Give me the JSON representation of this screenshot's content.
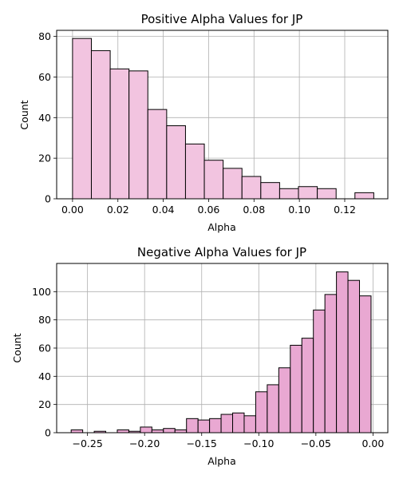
{
  "chart_data": [
    {
      "type": "bar",
      "subtype": "histogram",
      "title": "Positive Alpha Values for JP",
      "xlabel": "Alpha",
      "ylabel": "Count",
      "xlim": [
        -0.007,
        0.139
      ],
      "ylim": [
        0,
        83
      ],
      "xticks": [
        0.0,
        0.02,
        0.04,
        0.06,
        0.08,
        0.1,
        0.12
      ],
      "xtick_labels": [
        "0.00",
        "0.02",
        "0.04",
        "0.06",
        "0.08",
        "0.10",
        "0.12"
      ],
      "yticks": [
        0,
        20,
        40,
        60,
        80
      ],
      "ytick_labels": [
        "0",
        "20",
        "40",
        "60",
        "80"
      ],
      "grid": true,
      "bar_color": "#f2c4e0",
      "edge_color": "#000000",
      "bins": [
        {
          "x0": 0.0,
          "x1": 0.0083,
          "count": 79
        },
        {
          "x0": 0.0083,
          "x1": 0.0166,
          "count": 73
        },
        {
          "x0": 0.0166,
          "x1": 0.0249,
          "count": 64
        },
        {
          "x0": 0.0249,
          "x1": 0.0332,
          "count": 63
        },
        {
          "x0": 0.0332,
          "x1": 0.0415,
          "count": 44
        },
        {
          "x0": 0.0415,
          "x1": 0.0498,
          "count": 36
        },
        {
          "x0": 0.0498,
          "x1": 0.0581,
          "count": 27
        },
        {
          "x0": 0.0581,
          "x1": 0.0664,
          "count": 19
        },
        {
          "x0": 0.0664,
          "x1": 0.0747,
          "count": 15
        },
        {
          "x0": 0.0747,
          "x1": 0.083,
          "count": 11
        },
        {
          "x0": 0.083,
          "x1": 0.0913,
          "count": 8
        },
        {
          "x0": 0.0913,
          "x1": 0.0996,
          "count": 5
        },
        {
          "x0": 0.0996,
          "x1": 0.1079,
          "count": 6
        },
        {
          "x0": 0.1079,
          "x1": 0.1162,
          "count": 5
        },
        {
          "x0": 0.1162,
          "x1": 0.1245,
          "count": 0
        },
        {
          "x0": 0.1245,
          "x1": 0.1328,
          "count": 3
        }
      ]
    },
    {
      "type": "bar",
      "subtype": "histogram",
      "title": "Negative Alpha Values for JP",
      "xlabel": "Alpha",
      "ylabel": "Count",
      "xlim": [
        -0.277,
        0.013
      ],
      "ylim": [
        0,
        120
      ],
      "xticks": [
        -0.25,
        -0.2,
        -0.15,
        -0.1,
        -0.05,
        0.0
      ],
      "xtick_labels": [
        "−0.25",
        "−0.20",
        "−0.15",
        "−0.10",
        "−0.05",
        "0.00"
      ],
      "yticks": [
        0,
        20,
        40,
        60,
        80,
        100
      ],
      "ytick_labels": [
        "0",
        "20",
        "40",
        "60",
        "80",
        "100"
      ],
      "grid": true,
      "bar_color": "#e9a8d2",
      "edge_color": "#000000",
      "bins": [
        {
          "x0": -0.2643,
          "x1": -0.2542,
          "count": 2
        },
        {
          "x0": -0.2542,
          "x1": -0.2441,
          "count": 0
        },
        {
          "x0": -0.2441,
          "x1": -0.234,
          "count": 1
        },
        {
          "x0": -0.234,
          "x1": -0.2239,
          "count": 0
        },
        {
          "x0": -0.2239,
          "x1": -0.2138,
          "count": 2
        },
        {
          "x0": -0.2138,
          "x1": -0.2037,
          "count": 1
        },
        {
          "x0": -0.2037,
          "x1": -0.1936,
          "count": 4
        },
        {
          "x0": -0.1936,
          "x1": -0.1835,
          "count": 2
        },
        {
          "x0": -0.1835,
          "x1": -0.1734,
          "count": 3
        },
        {
          "x0": -0.1734,
          "x1": -0.1633,
          "count": 2
        },
        {
          "x0": -0.1633,
          "x1": -0.1532,
          "count": 10
        },
        {
          "x0": -0.1532,
          "x1": -0.1431,
          "count": 9
        },
        {
          "x0": -0.1431,
          "x1": -0.133,
          "count": 10
        },
        {
          "x0": -0.133,
          "x1": -0.1229,
          "count": 13
        },
        {
          "x0": -0.1229,
          "x1": -0.1128,
          "count": 14
        },
        {
          "x0": -0.1128,
          "x1": -0.1027,
          "count": 12
        },
        {
          "x0": -0.1027,
          "x1": -0.0926,
          "count": 29
        },
        {
          "x0": -0.0926,
          "x1": -0.0825,
          "count": 34
        },
        {
          "x0": -0.0825,
          "x1": -0.0724,
          "count": 46
        },
        {
          "x0": -0.0724,
          "x1": -0.0623,
          "count": 62
        },
        {
          "x0": -0.0623,
          "x1": -0.0522,
          "count": 67
        },
        {
          "x0": -0.0522,
          "x1": -0.0421,
          "count": 87
        },
        {
          "x0": -0.0421,
          "x1": -0.032,
          "count": 98
        },
        {
          "x0": -0.032,
          "x1": -0.0219,
          "count": 114
        },
        {
          "x0": -0.0219,
          "x1": -0.0118,
          "count": 108
        },
        {
          "x0": -0.0118,
          "x1": -0.0017,
          "count": 97
        }
      ]
    }
  ]
}
